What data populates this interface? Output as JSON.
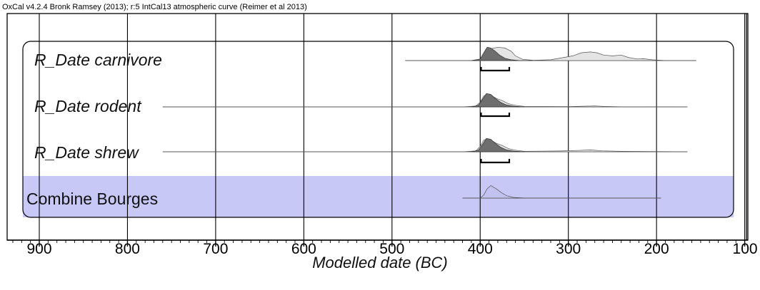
{
  "header": "OxCal v4.2.4 Bronk Ramsey (2013); r:5 IntCal13 atmospheric curve (Reimer et al 2013)",
  "chart_data": {
    "type": "area",
    "title": "",
    "xlabel": "Modelled date (BC)",
    "ylabel": "",
    "xlim": [
      930,
      100
    ],
    "x_ticks": [
      900,
      800,
      700,
      600,
      500,
      400,
      300,
      200,
      100
    ],
    "x_tick_labels": [
      "900",
      "800",
      "700",
      "600",
      "500",
      "400",
      "300",
      "200",
      "100"
    ],
    "grid": true,
    "series": [
      {
        "name": "R_Date carnivore",
        "italic": true,
        "highlight": false,
        "range_line": [
          485,
          155
        ],
        "prior": [
          [
            485,
            0
          ],
          [
            410,
            0
          ],
          [
            400,
            0.05
          ],
          [
            395,
            0.35
          ],
          [
            388,
            0.75
          ],
          [
            380,
            0.85
          ],
          [
            372,
            0.8
          ],
          [
            365,
            0.6
          ],
          [
            360,
            0.3
          ],
          [
            352,
            0.08
          ],
          [
            340,
            0.02
          ],
          [
            320,
            0.05
          ],
          [
            305,
            0.2
          ],
          [
            295,
            0.3
          ],
          [
            285,
            0.5
          ],
          [
            275,
            0.55
          ],
          [
            268,
            0.5
          ],
          [
            260,
            0.35
          ],
          [
            250,
            0.3
          ],
          [
            240,
            0.35
          ],
          [
            232,
            0.2
          ],
          [
            222,
            0.1
          ],
          [
            215,
            0.12
          ],
          [
            205,
            0.05
          ],
          [
            190,
            0
          ],
          [
            155,
            0
          ]
        ],
        "posterior": [
          [
            410,
            0
          ],
          [
            400,
            0.1
          ],
          [
            396,
            0.5
          ],
          [
            392,
            0.85
          ],
          [
            388,
            0.8
          ],
          [
            383,
            0.6
          ],
          [
            378,
            0.35
          ],
          [
            372,
            0.15
          ],
          [
            365,
            0.05
          ],
          [
            355,
            0
          ],
          [
            340,
            0
          ]
        ],
        "range_bracket": [
          399,
          367
        ]
      },
      {
        "name": "R_Date rodent",
        "italic": true,
        "highlight": false,
        "range_line": [
          760,
          165
        ],
        "prior": [
          [
            760,
            0
          ],
          [
            420,
            0
          ],
          [
            405,
            0.05
          ],
          [
            400,
            0.3
          ],
          [
            396,
            0.7
          ],
          [
            392,
            0.8
          ],
          [
            388,
            0.75
          ],
          [
            382,
            0.55
          ],
          [
            375,
            0.4
          ],
          [
            368,
            0.2
          ],
          [
            360,
            0.1
          ],
          [
            350,
            0.03
          ],
          [
            300,
            0.02
          ],
          [
            270,
            0.06
          ],
          [
            260,
            0.03
          ],
          [
            240,
            0.01
          ],
          [
            165,
            0
          ]
        ],
        "posterior": [
          [
            410,
            0
          ],
          [
            402,
            0.1
          ],
          [
            397,
            0.5
          ],
          [
            393,
            0.85
          ],
          [
            388,
            0.8
          ],
          [
            383,
            0.55
          ],
          [
            377,
            0.3
          ],
          [
            370,
            0.12
          ],
          [
            362,
            0.04
          ],
          [
            350,
            0
          ]
        ],
        "range_bracket": [
          399,
          367
        ]
      },
      {
        "name": "R_Date shrew",
        "italic": true,
        "highlight": false,
        "range_line": [
          760,
          165
        ],
        "prior": [
          [
            760,
            0
          ],
          [
            420,
            0
          ],
          [
            405,
            0.05
          ],
          [
            400,
            0.35
          ],
          [
            396,
            0.75
          ],
          [
            392,
            0.8
          ],
          [
            388,
            0.75
          ],
          [
            382,
            0.55
          ],
          [
            375,
            0.4
          ],
          [
            368,
            0.2
          ],
          [
            360,
            0.1
          ],
          [
            350,
            0.03
          ],
          [
            310,
            0.05
          ],
          [
            290,
            0.08
          ],
          [
            275,
            0.12
          ],
          [
            262,
            0.06
          ],
          [
            240,
            0.03
          ],
          [
            165,
            0
          ]
        ],
        "posterior": [
          [
            410,
            0
          ],
          [
            402,
            0.1
          ],
          [
            397,
            0.5
          ],
          [
            393,
            0.85
          ],
          [
            388,
            0.8
          ],
          [
            383,
            0.55
          ],
          [
            377,
            0.3
          ],
          [
            370,
            0.12
          ],
          [
            362,
            0.04
          ],
          [
            350,
            0
          ]
        ],
        "range_bracket": [
          399,
          367
        ]
      },
      {
        "name": "Combine Bourges",
        "italic": false,
        "highlight": true,
        "range_line": [
          420,
          195
        ],
        "prior": [
          [
            420,
            0
          ],
          [
            400,
            0
          ],
          [
            396,
            0.2
          ],
          [
            392,
            0.6
          ],
          [
            388,
            0.8
          ],
          [
            382,
            0.6
          ],
          [
            376,
            0.35
          ],
          [
            370,
            0.15
          ],
          [
            362,
            0.04
          ],
          [
            350,
            0.01
          ],
          [
            260,
            0.01
          ],
          [
            195,
            0
          ]
        ],
        "posterior": [],
        "range_bracket": []
      }
    ]
  },
  "colors": {
    "highlight": "#c8c8f7",
    "prior_fill": "#e4e4e4",
    "posterior_fill": "#6e6e6e",
    "combine_fill": "#c2c2f0",
    "stroke": "#555555"
  }
}
